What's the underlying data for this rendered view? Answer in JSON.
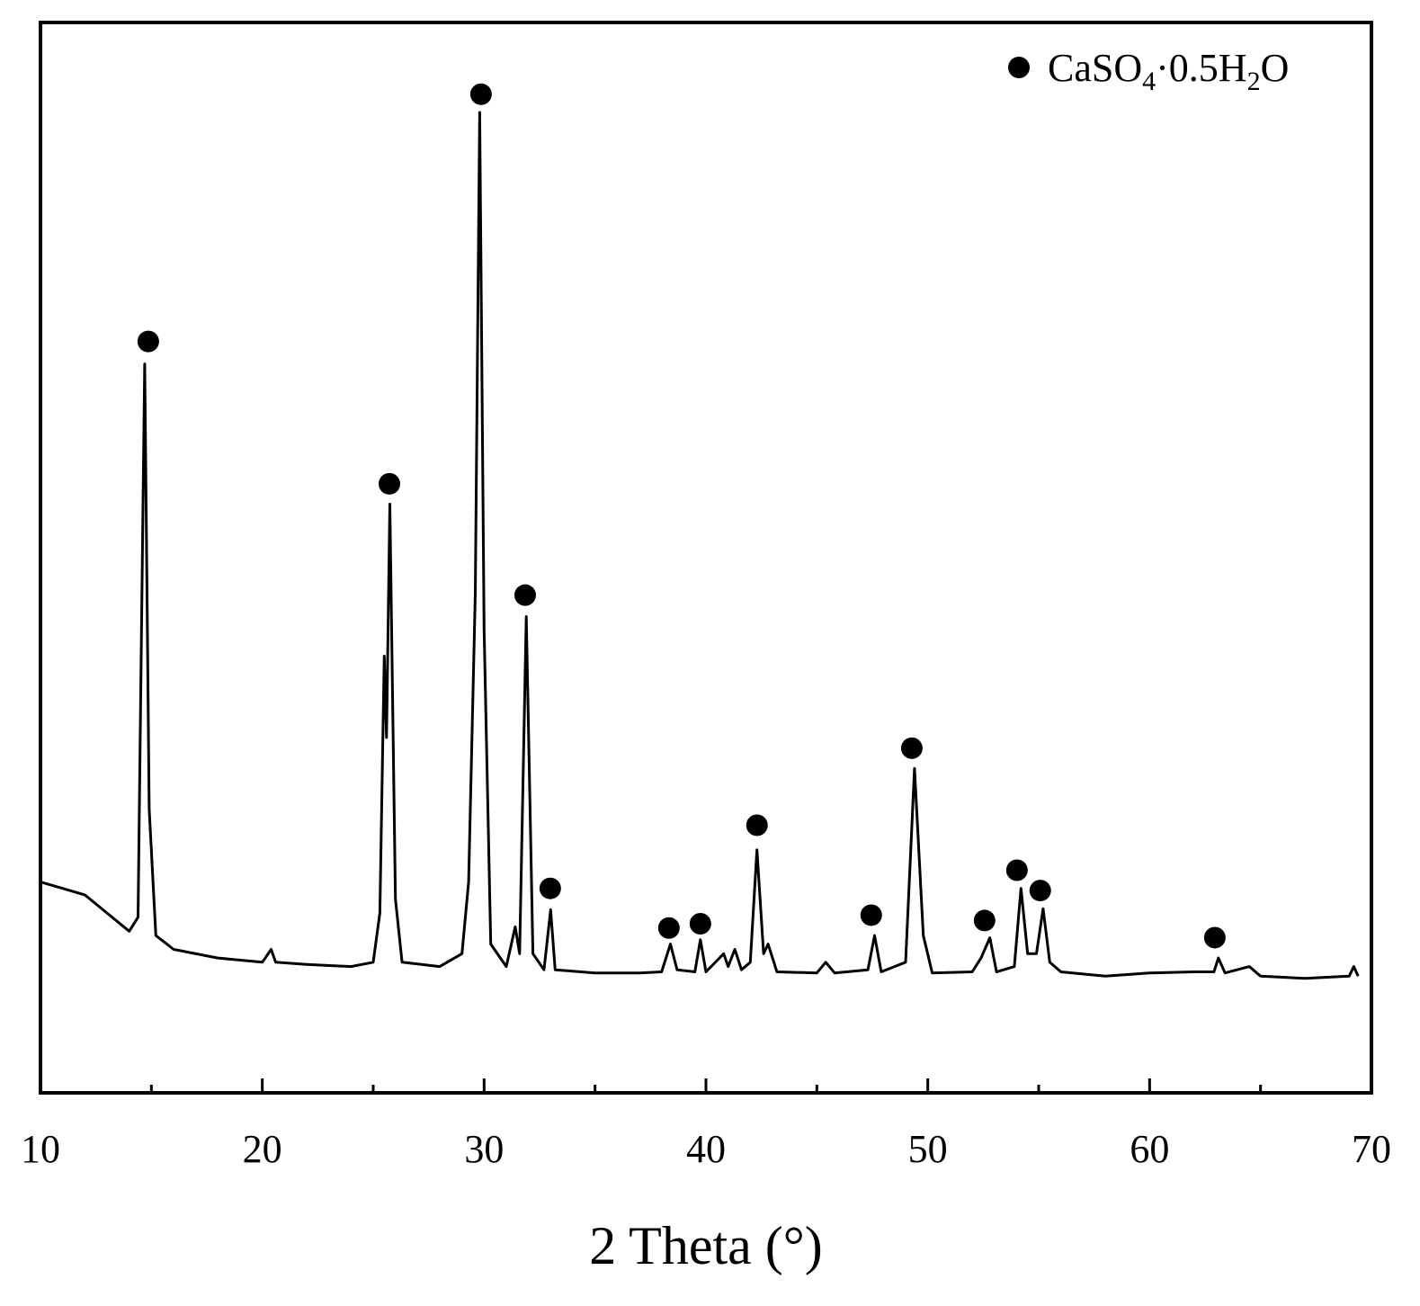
{
  "chart_data": {
    "type": "line",
    "x_label": "2 Theta (°)",
    "xlim": [
      10,
      70
    ],
    "xticks": [
      10,
      20,
      30,
      40,
      50,
      60,
      70
    ],
    "xminorticks": [
      15,
      25,
      35,
      45,
      55,
      65
    ],
    "ylim": [
      0,
      100
    ],
    "color": "#000000",
    "x": [
      10,
      12,
      13,
      14,
      14.4,
      14.7,
      14.9,
      15.2,
      16,
      18,
      20,
      20.4,
      20.6,
      22,
      24,
      25,
      25.3,
      25.5,
      25.6,
      25.75,
      26,
      26.3,
      28,
      29,
      29.3,
      29.6,
      29.8,
      30,
      30.3,
      31,
      31.4,
      31.6,
      31.9,
      32.2,
      32.7,
      33.0,
      33.2,
      35,
      37,
      38,
      38.4,
      38.7,
      39.5,
      39.75,
      40,
      40.8,
      41.0,
      41.3,
      41.6,
      42.0,
      42.3,
      42.6,
      42.8,
      43.2,
      45,
      45.4,
      45.8,
      47.3,
      47.6,
      47.9,
      49,
      49.4,
      49.8,
      50.2,
      52,
      52.4,
      52.8,
      53.1,
      53.9,
      54.2,
      54.5,
      54.9,
      55.2,
      55.5,
      56,
      58,
      60,
      62,
      62.9,
      63.1,
      63.4,
      64.5,
      65,
      67,
      69,
      69.2,
      69.4
    ],
    "values": [
      19.7,
      18.5,
      16.8,
      15.1,
      16.4,
      68.1,
      26.5,
      14.7,
      13.4,
      12.6,
      12.2,
      13.4,
      12.2,
      12.0,
      11.8,
      12.2,
      16.8,
      40.8,
      33.2,
      55.0,
      18.1,
      12.2,
      11.8,
      13.0,
      19.7,
      46.6,
      91.6,
      43.3,
      13.9,
      11.8,
      15.5,
      13.0,
      44.5,
      13.0,
      11.5,
      17.1,
      11.5,
      11.2,
      11.2,
      11.3,
      13.9,
      11.5,
      11.3,
      14.3,
      11.3,
      13.0,
      11.8,
      13.4,
      11.5,
      12.2,
      22.7,
      13.0,
      13.9,
      11.3,
      11.2,
      12.2,
      11.2,
      11.5,
      14.7,
      11.3,
      12.2,
      30.3,
      14.7,
      11.2,
      11.3,
      12.6,
      14.5,
      11.3,
      11.8,
      19.1,
      13.0,
      13.0,
      17.2,
      12.2,
      11.3,
      10.9,
      11.2,
      11.3,
      11.3,
      12.6,
      11.2,
      11.8,
      10.9,
      10.7,
      10.9,
      11.8,
      10.9
    ],
    "markers": {
      "name": "CaSO4·0.5H2O",
      "color": "#000000",
      "x": [
        14.86,
        25.73,
        29.86,
        31.85,
        32.98,
        38.33,
        39.75,
        42.3,
        47.45,
        49.28,
        52.56,
        54.02,
        55.07,
        62.94
      ],
      "values": [
        70.2,
        56.9,
        93.3,
        46.5,
        19.1,
        15.4,
        15.8,
        25.0,
        16.6,
        32.2,
        16.1,
        20.8,
        18.9,
        14.5
      ]
    },
    "legend": "upper right"
  }
}
